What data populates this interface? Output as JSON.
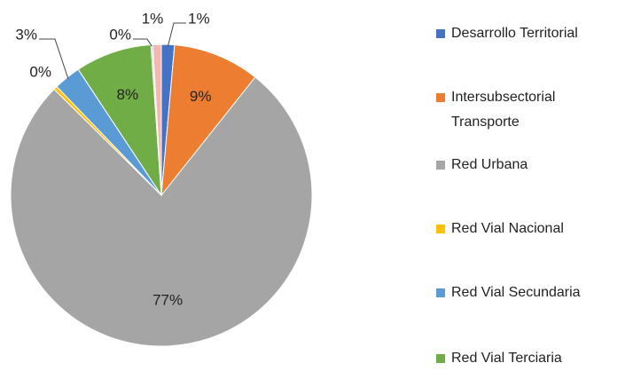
{
  "chart_data": {
    "type": "pie",
    "categories": [
      "Desarrollo Territorial",
      "Intersubsectorial Transporte",
      "Red Urbana",
      "Red Vial Nacional",
      "Red Vial Secundaria",
      "Red Vial Terciaria",
      null,
      null
    ],
    "values": [
      1.4,
      9.3,
      76.7,
      0.4,
      2.9,
      8.2,
      0.2,
      0.9
    ],
    "value_labels": [
      "1%",
      "9%",
      "77%",
      "0%",
      "3%",
      "8%",
      "0%",
      "1%"
    ],
    "colors": [
      "#4472c4",
      "#ed7d31",
      "#a5a5a5",
      "#ffc000",
      "#5b9bd5",
      "#70ad47",
      "#d9d9d9",
      "#f4b6b0"
    ]
  }
}
